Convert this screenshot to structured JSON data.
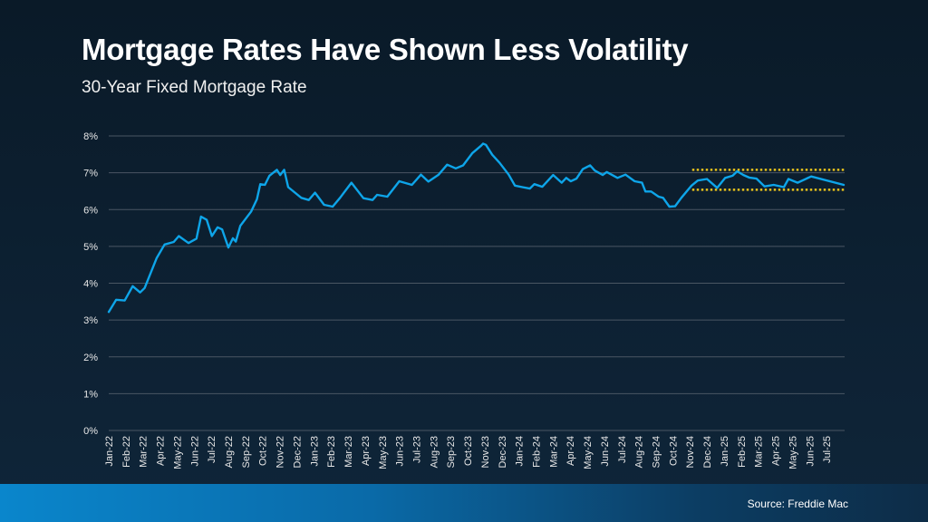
{
  "header": {
    "title": "Mortgage Rates Have Shown Less Volatility",
    "subtitle": "30-Year Fixed Mortgage Rate"
  },
  "footer": {
    "source": "Source: Freddie Mac"
  },
  "colors": {
    "line": "#0ea5e9",
    "band_lines": "#e8c21c",
    "grid": "#4a5663",
    "background": "#0b1c2c"
  },
  "chart_data": {
    "type": "line",
    "title": "",
    "xlabel": "",
    "ylabel": "",
    "ylim": [
      0,
      8
    ],
    "yticks": [
      0,
      1,
      2,
      3,
      4,
      5,
      6,
      7,
      8
    ],
    "ytick_labels": [
      "0%",
      "1%",
      "2%",
      "3%",
      "4%",
      "5%",
      "6%",
      "7%",
      "8%"
    ],
    "grid": true,
    "xtick_labels": [
      "Jan-22",
      "Feb-22",
      "Mar-22",
      "Apr-22",
      "May-22",
      "Jun-22",
      "Jul-22",
      "Aug-22",
      "Sep-22",
      "Oct-22",
      "Nov-22",
      "Dec-22",
      "Jan-23",
      "Feb-23",
      "Mar-23",
      "Apr-23",
      "May-23",
      "Jun-23",
      "Jul-23",
      "Aug-23",
      "Sep-23",
      "Oct-23",
      "Nov-23",
      "Dec-23",
      "Jan-24",
      "Feb-24",
      "Mar-24",
      "Apr-24",
      "May-24",
      "Jun-24",
      "Jul-24",
      "Aug-24",
      "Sep-24",
      "Oct-24",
      "Nov-24",
      "Dec-24",
      "Jan-25",
      "Feb-25",
      "Mar-25",
      "Apr-25",
      "May-25",
      "Jun-25",
      "Jul-25"
    ],
    "series": [
      {
        "points": [
          [
            "2022-01-01",
            3.22
          ],
          [
            "2022-01-14",
            3.55
          ],
          [
            "2022-01-29",
            3.53
          ],
          [
            "2022-02-13",
            3.92
          ],
          [
            "2022-02-26",
            3.75
          ],
          [
            "2022-03-04",
            3.87
          ],
          [
            "2022-03-25",
            4.68
          ],
          [
            "2022-04-09",
            5.05
          ],
          [
            "2022-04-25",
            5.12
          ],
          [
            "2022-05-04",
            5.28
          ],
          [
            "2022-05-21",
            5.09
          ],
          [
            "2022-06-05",
            5.21
          ],
          [
            "2022-06-13",
            5.81
          ],
          [
            "2022-06-23",
            5.72
          ],
          [
            "2022-07-02",
            5.28
          ],
          [
            "2022-07-12",
            5.52
          ],
          [
            "2022-07-20",
            5.46
          ],
          [
            "2022-08-01",
            4.97
          ],
          [
            "2022-08-09",
            5.22
          ],
          [
            "2022-08-14",
            5.13
          ],
          [
            "2022-08-22",
            5.56
          ],
          [
            "2022-09-11",
            5.95
          ],
          [
            "2022-09-21",
            6.28
          ],
          [
            "2022-09-27",
            6.69
          ],
          [
            "2022-10-05",
            6.67
          ],
          [
            "2022-10-13",
            6.92
          ],
          [
            "2022-10-26",
            7.08
          ],
          [
            "2022-11-02",
            6.94
          ],
          [
            "2022-11-09",
            7.08
          ],
          [
            "2022-11-16",
            6.61
          ],
          [
            "2022-12-09",
            6.32
          ],
          [
            "2022-12-22",
            6.26
          ],
          [
            "2023-01-03",
            6.46
          ],
          [
            "2023-01-19",
            6.13
          ],
          [
            "2023-02-04",
            6.08
          ],
          [
            "2023-02-17",
            6.32
          ],
          [
            "2023-03-07",
            6.73
          ],
          [
            "2023-03-28",
            6.31
          ],
          [
            "2023-04-14",
            6.26
          ],
          [
            "2023-04-22",
            6.4
          ],
          [
            "2023-05-10",
            6.35
          ],
          [
            "2023-06-01",
            6.77
          ],
          [
            "2023-06-23",
            6.67
          ],
          [
            "2023-07-09",
            6.95
          ],
          [
            "2023-07-22",
            6.76
          ],
          [
            "2023-08-10",
            6.95
          ],
          [
            "2023-08-25",
            7.22
          ],
          [
            "2023-09-10",
            7.12
          ],
          [
            "2023-09-23",
            7.2
          ],
          [
            "2023-10-09",
            7.53
          ],
          [
            "2023-10-25",
            7.74
          ],
          [
            "2023-10-28",
            7.79
          ],
          [
            "2023-11-03",
            7.76
          ],
          [
            "2023-11-14",
            7.49
          ],
          [
            "2023-11-27",
            7.27
          ],
          [
            "2023-12-13",
            6.95
          ],
          [
            "2023-12-24",
            6.65
          ],
          [
            "2024-01-07",
            6.61
          ],
          [
            "2024-01-20",
            6.57
          ],
          [
            "2024-01-28",
            6.69
          ],
          [
            "2024-02-12",
            6.62
          ],
          [
            "2024-03-01",
            6.94
          ],
          [
            "2024-03-16",
            6.73
          ],
          [
            "2024-03-24",
            6.86
          ],
          [
            "2024-04-02",
            6.77
          ],
          [
            "2024-04-12",
            6.84
          ],
          [
            "2024-04-23",
            7.1
          ],
          [
            "2024-05-06",
            7.2
          ],
          [
            "2024-05-14",
            7.06
          ],
          [
            "2024-05-28",
            6.94
          ],
          [
            "2024-06-05",
            7.02
          ],
          [
            "2024-06-24",
            6.86
          ],
          [
            "2024-07-08",
            6.95
          ],
          [
            "2024-07-24",
            6.77
          ],
          [
            "2024-08-07",
            6.73
          ],
          [
            "2024-08-13",
            6.49
          ],
          [
            "2024-08-23",
            6.49
          ],
          [
            "2024-09-06",
            6.35
          ],
          [
            "2024-09-14",
            6.32
          ],
          [
            "2024-09-25",
            6.08
          ],
          [
            "2024-10-05",
            6.09
          ],
          [
            "2024-10-16",
            6.32
          ],
          [
            "2024-11-04",
            6.65
          ],
          [
            "2024-11-15",
            6.79
          ],
          [
            "2024-12-01",
            6.83
          ],
          [
            "2024-12-19",
            6.59
          ],
          [
            "2025-01-03",
            6.86
          ],
          [
            "2025-01-16",
            6.92
          ],
          [
            "2025-01-24",
            7.04
          ],
          [
            "2025-02-05",
            6.94
          ],
          [
            "2025-02-15",
            6.87
          ],
          [
            "2025-02-28",
            6.84
          ],
          [
            "2025-03-12",
            6.63
          ],
          [
            "2025-03-28",
            6.67
          ],
          [
            "2025-04-16",
            6.61
          ],
          [
            "2025-04-24",
            6.83
          ],
          [
            "2025-05-10",
            6.73
          ],
          [
            "2025-06-04",
            6.9
          ],
          [
            "2025-08-01",
            6.67
          ]
        ]
      }
    ],
    "reference_lines": [
      {
        "value": 7.08,
        "from": "2024-11-05",
        "to": "2025-08-01",
        "style": "dotted"
      },
      {
        "value": 6.54,
        "from": "2024-11-05",
        "to": "2025-08-01",
        "style": "dotted"
      }
    ]
  }
}
